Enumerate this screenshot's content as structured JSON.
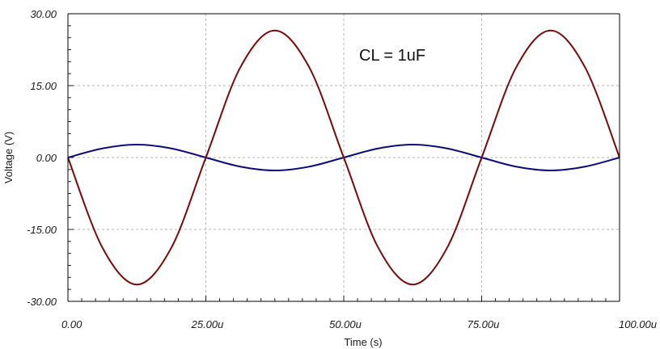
{
  "chart_data": {
    "type": "line",
    "title": "",
    "annotation": "CL = 1uF",
    "xlabel": "Time (s)",
    "ylabel": "Voltage (V)",
    "xlim": [
      0,
      100
    ],
    "ylim": [
      -30,
      30
    ],
    "x_unit": "u",
    "x_ticks": [
      0,
      25,
      50,
      75,
      100
    ],
    "x_tick_labels": [
      "0.00",
      "25.00u",
      "50.00u",
      "75.00u",
      "100.00u"
    ],
    "y_ticks": [
      30,
      15,
      0,
      -15,
      -30
    ],
    "y_tick_labels": [
      "30.00",
      "15.00",
      "0.00",
      "-15.00",
      "-30.00"
    ],
    "grid": true,
    "series": [
      {
        "color": "#0b0b7a",
        "x": [
          0,
          6.25,
          12.5,
          18.75,
          25,
          31.25,
          37.5,
          43.75,
          50,
          56.25,
          62.5,
          68.75,
          75,
          81.25,
          87.5,
          93.75,
          100
        ],
        "values": [
          0,
          1.9,
          2.7,
          1.9,
          0,
          -1.9,
          -2.7,
          -1.9,
          0,
          1.9,
          2.7,
          1.9,
          0,
          -1.9,
          -2.7,
          -1.9,
          0
        ]
      },
      {
        "color": "#7a0a0a",
        "x": [
          0,
          6.25,
          12.5,
          18.75,
          25,
          31.25,
          37.5,
          43.75,
          50,
          56.25,
          62.5,
          68.75,
          75,
          81.25,
          87.5,
          93.75,
          100
        ],
        "values": [
          0,
          -18.8,
          -26.5,
          -18.8,
          0,
          18.8,
          26.5,
          18.8,
          0,
          -18.8,
          -26.5,
          -18.8,
          0,
          18.8,
          26.5,
          18.8,
          0
        ]
      }
    ]
  }
}
